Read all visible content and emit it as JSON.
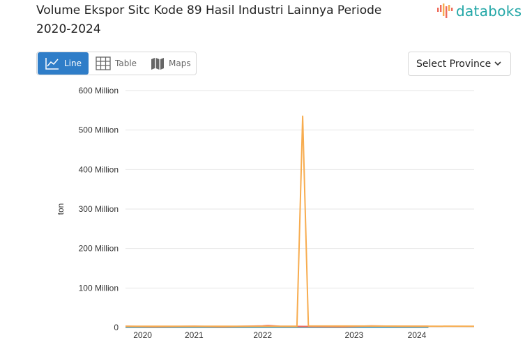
{
  "header": {
    "title": "Volume Ekspor Sitc Kode 89 Hasil Industri Lainnya Periode 2020-2024",
    "logo_text": "databoks"
  },
  "view_toggle": {
    "line_label": "Line",
    "table_label": "Table",
    "maps_label": "Maps",
    "active": "Line"
  },
  "province_select": {
    "label": "Select Province"
  },
  "colors": {
    "accent": "#2f7dc8",
    "brand": "#23a7a7",
    "series": [
      "#f7ac4f",
      "#ef6b5b",
      "#5b9bd5",
      "#3caa6b"
    ]
  },
  "chart_data": {
    "type": "line",
    "title": "",
    "xlabel": "",
    "ylabel": "ton",
    "ylim": [
      0,
      600000000
    ],
    "y_ticks": [
      {
        "value": 0,
        "label": "0"
      },
      {
        "value": 100000000,
        "label": "100 Million"
      },
      {
        "value": 200000000,
        "label": "200 Million"
      },
      {
        "value": 300000000,
        "label": "300 Million"
      },
      {
        "value": 400000000,
        "label": "400 Million"
      },
      {
        "value": 500000000,
        "label": "500 Million"
      },
      {
        "value": 600000000,
        "label": "600 Million"
      }
    ],
    "x_ticks": [
      {
        "value": "2020-04",
        "label": "2020"
      },
      {
        "value": "2021-01",
        "label": "2021"
      },
      {
        "value": "2022-01",
        "label": "2022"
      },
      {
        "value": "2023-05",
        "label": "2023"
      },
      {
        "value": "2024-04",
        "label": "2024"
      }
    ],
    "xlim": [
      "2020-01",
      "2025-02"
    ],
    "grid": true,
    "series": [
      {
        "color": "#f7ac4f",
        "points": [
          [
            "2020-01",
            3000000
          ],
          [
            "2022-07",
            3000000
          ],
          [
            "2022-08",
            535000000
          ],
          [
            "2022-09",
            4000000
          ],
          [
            "2025-02",
            3000000
          ]
        ]
      },
      {
        "color": "#ef6b5b",
        "points": [
          [
            "2020-01",
            3000000
          ],
          [
            "2020-06",
            2000000
          ],
          [
            "2021-01",
            3000000
          ],
          [
            "2021-06",
            2000000
          ],
          [
            "2022-01",
            4000000
          ],
          [
            "2022-02",
            5000000
          ],
          [
            "2022-04",
            3000000
          ],
          [
            "2023-03",
            2000000
          ],
          [
            "2023-08",
            4000000
          ],
          [
            "2024-01",
            3000000
          ],
          [
            "2024-06",
            3000000
          ]
        ]
      },
      {
        "color": "#5b9bd5",
        "points": [
          [
            "2020-01",
            1000000
          ],
          [
            "2022-06",
            1000000
          ],
          [
            "2024-06",
            1000000
          ]
        ]
      },
      {
        "color": "#3caa6b",
        "points": [
          [
            "2020-01",
            500000
          ],
          [
            "2021-06",
            500000
          ],
          [
            "2023-06",
            500000
          ],
          [
            "2024-06",
            500000
          ]
        ]
      }
    ]
  }
}
